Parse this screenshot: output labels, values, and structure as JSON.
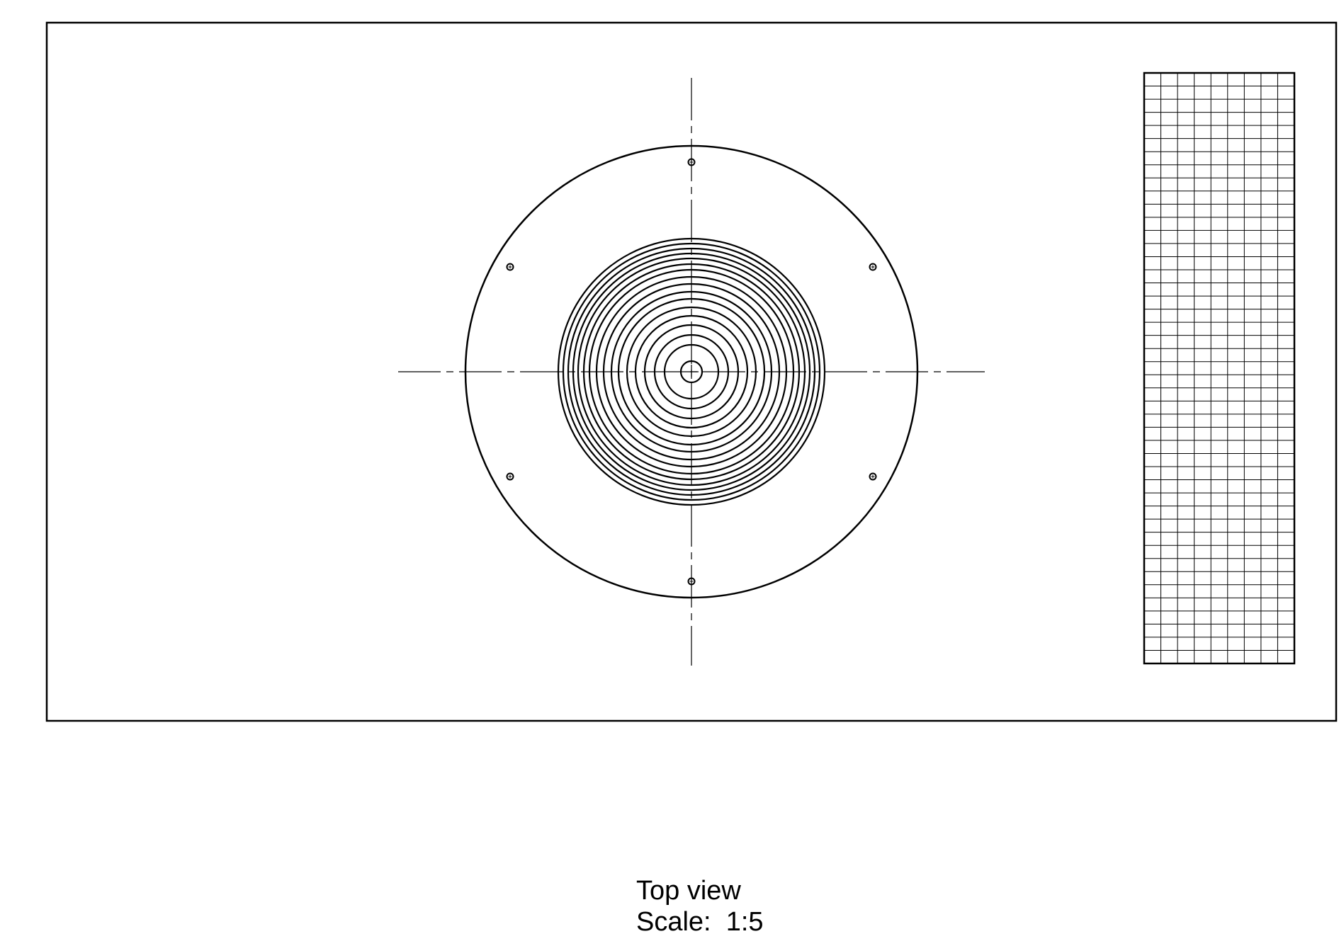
{
  "caption": {
    "view_name": "Top view",
    "scale": "Scale:  1:5"
  },
  "colors": {
    "line": "#000000",
    "background": "#ffffff"
  }
}
